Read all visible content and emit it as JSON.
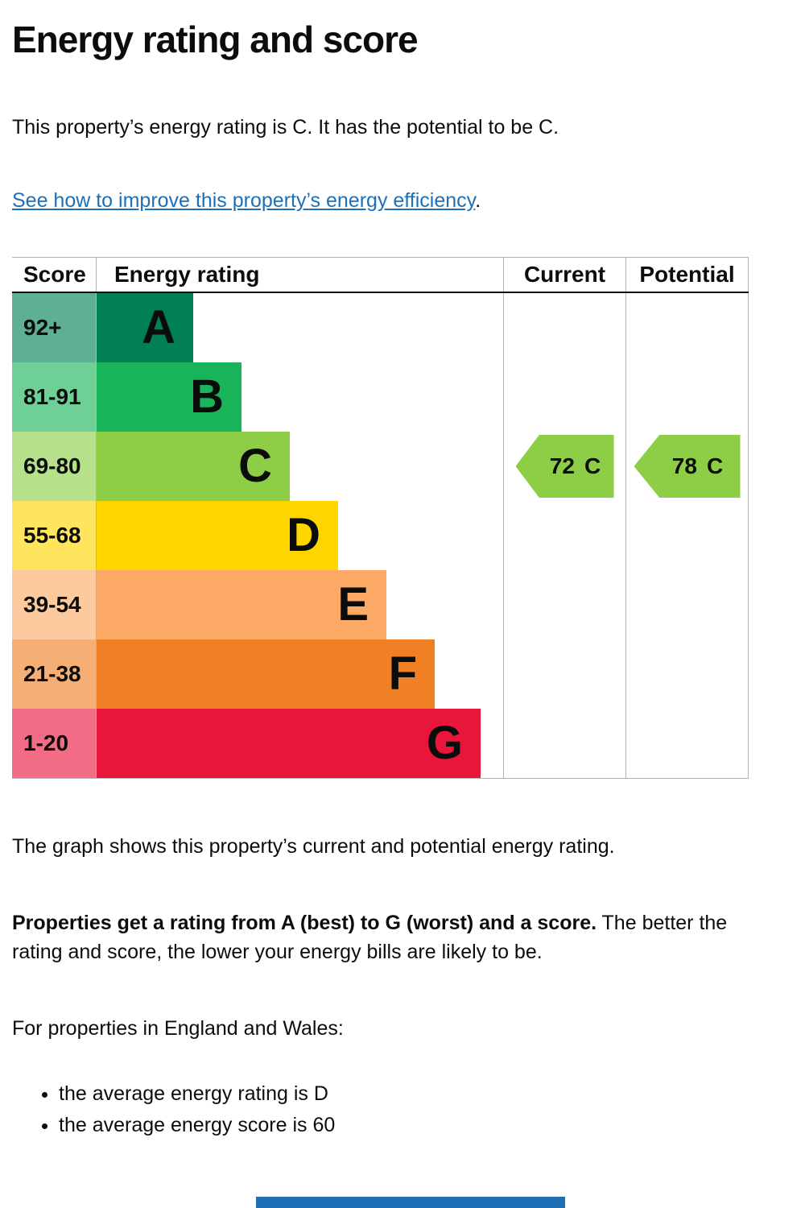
{
  "page": {
    "title": "Energy rating and score",
    "summary": "This property’s energy rating is C. It has the potential to be C.",
    "improve_link": "See how to improve this property’s energy efficiency",
    "improve_link_suffix": ".",
    "caption": "The graph shows this property’s current and potential energy rating.",
    "explain_bold": "Properties get a rating from A (best) to G (worst) and a score.",
    "explain_rest": " The better the rating and score, the lower your energy bills are likely to be.",
    "region_heading": "For properties in England and Wales:",
    "bullets": [
      "the average energy rating is D",
      "the average energy score is 60"
    ]
  },
  "chart": {
    "headers": {
      "score": "Score",
      "rating": "Energy rating",
      "current": "Current",
      "potential": "Potential"
    },
    "bands": [
      {
        "range": "92+",
        "letter": "A",
        "color": "#008054",
        "tint": "#5eaf93"
      },
      {
        "range": "81-91",
        "letter": "B",
        "color": "#19b459",
        "tint": "#6ed096"
      },
      {
        "range": "69-80",
        "letter": "C",
        "color": "#8dce46",
        "tint": "#b7e08a"
      },
      {
        "range": "55-68",
        "letter": "D",
        "color": "#ffd500",
        "tint": "#ffe55e"
      },
      {
        "range": "39-54",
        "letter": "E",
        "color": "#fcaa65",
        "tint": "#fdc99e"
      },
      {
        "range": "21-38",
        "letter": "F",
        "color": "#ef8023",
        "tint": "#f5af74"
      },
      {
        "range": "1-20",
        "letter": "G",
        "color": "#e9153b",
        "tint": "#f16c84"
      }
    ],
    "current": {
      "value": "72",
      "letter": "C",
      "color": "#8dce46"
    },
    "potential": {
      "value": "78",
      "letter": "C",
      "color": "#8dce46"
    }
  },
  "chart_data": {
    "type": "bar",
    "title": "Energy rating and score",
    "categories": [
      "A",
      "B",
      "C",
      "D",
      "E",
      "F",
      "G"
    ],
    "score_ranges": [
      "92+",
      "81-91",
      "69-80",
      "55-68",
      "39-54",
      "21-38",
      "1-20"
    ],
    "values": [
      120,
      180,
      240,
      300,
      360,
      420,
      477
    ],
    "band_colors": [
      "#008054",
      "#19b459",
      "#8dce46",
      "#ffd500",
      "#fcaa65",
      "#ef8023",
      "#e9153b"
    ],
    "current": {
      "score": 72,
      "rating": "C"
    },
    "potential": {
      "score": 78,
      "rating": "C"
    },
    "columns": [
      "Score",
      "Energy rating",
      "Current",
      "Potential"
    ],
    "legend_position": "none",
    "grid": false
  },
  "colors": {
    "link_blue": "#1d70b8",
    "text": "#0b0c0c",
    "table_border": "#b1b4b6",
    "bottom_bar": "#1d70b8"
  }
}
